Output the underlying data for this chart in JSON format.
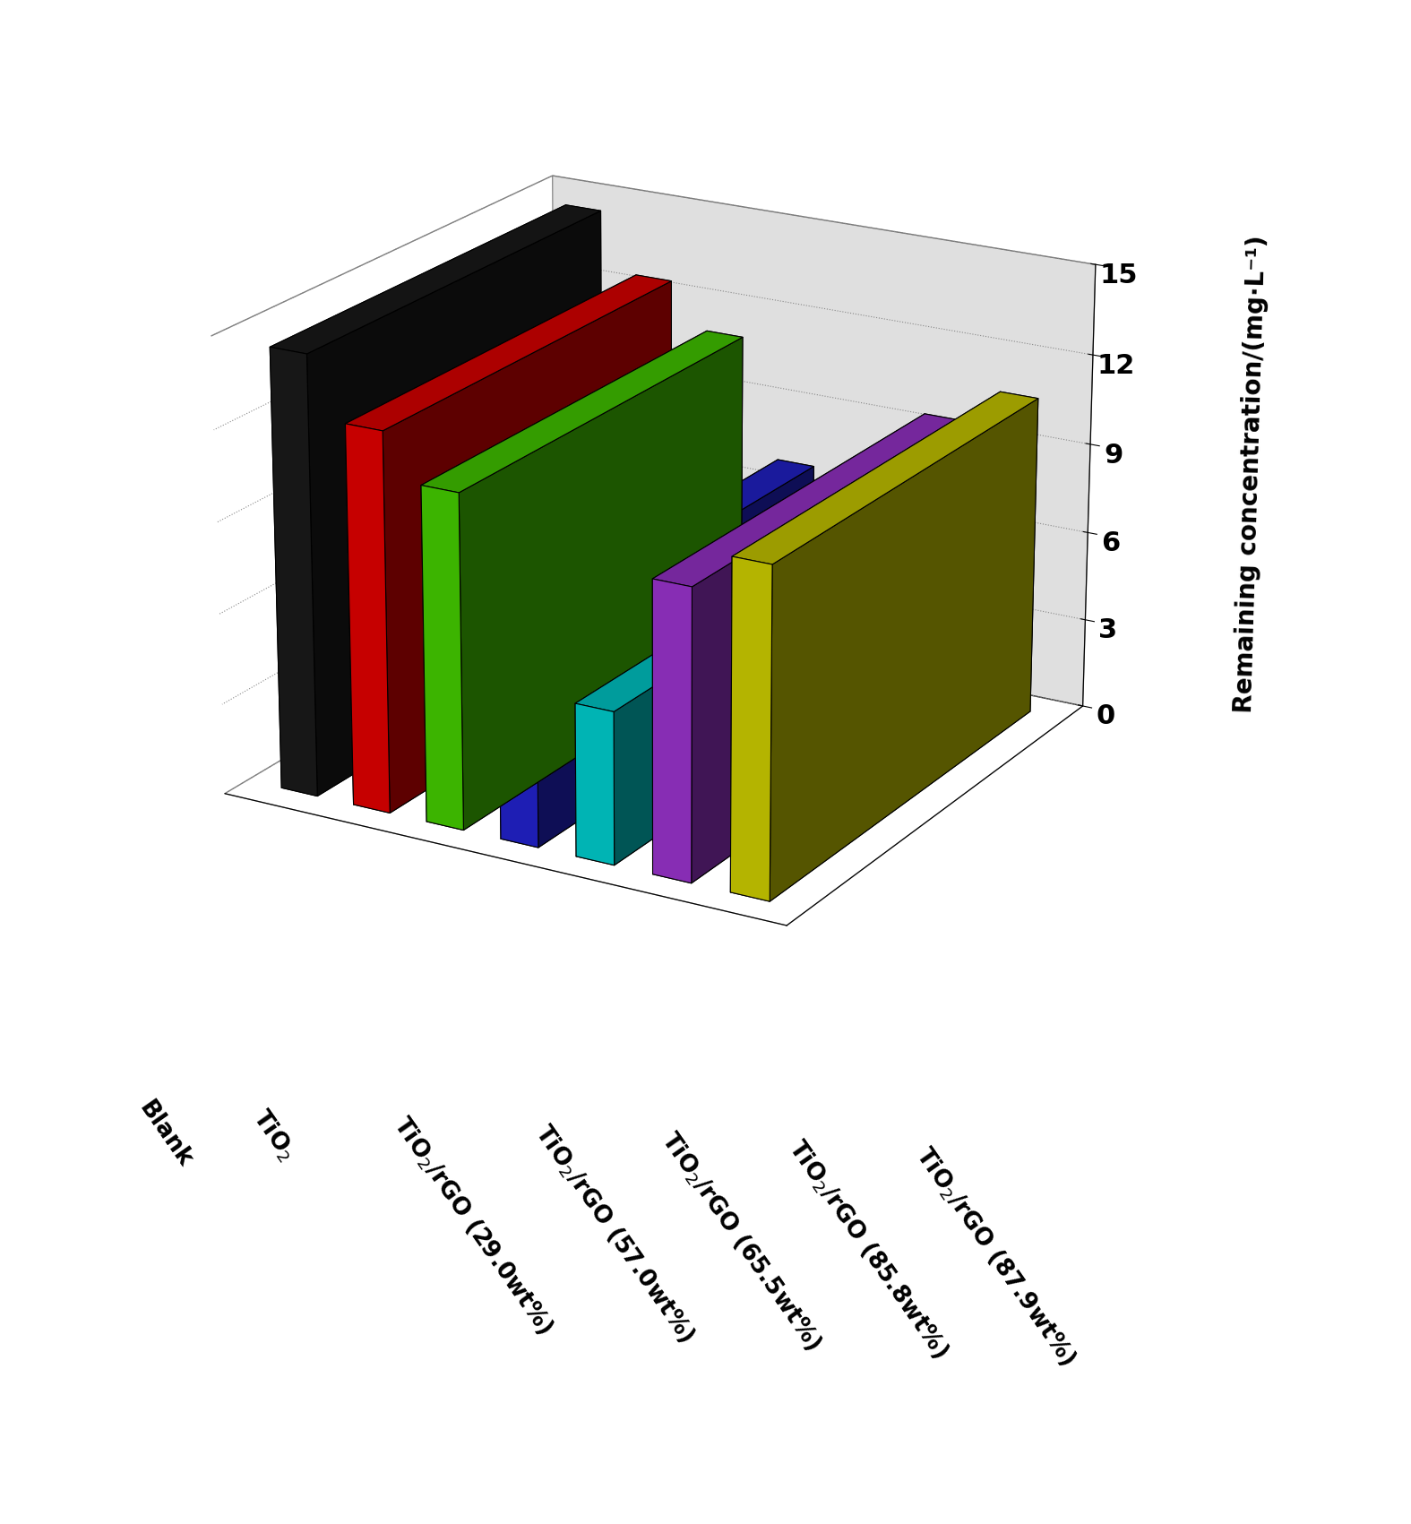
{
  "categories": [
    "Blank",
    "TiO$_2$",
    "TiO$_2$/rGO (29.0wt%)",
    "TiO$_2$/rGO (57.0wt%)",
    "TiO$_2$/rGO (65.5wt%)",
    "TiO$_2$/rGO (85.8wt%)",
    "TiO$_2$/rGO (87.9wt%)"
  ],
  "values": [
    14.5,
    12.5,
    11.0,
    7.0,
    5.0,
    9.5,
    10.7
  ],
  "colors": [
    "#1a1a1a",
    "#e00000",
    "#44cc00",
    "#2222cc",
    "#00cccc",
    "#9933cc",
    "#cccc00"
  ],
  "ylabel": "Remaining concentration/(mg·L⁻¹)",
  "ylim": [
    0,
    15
  ],
  "yticks": [
    0,
    3,
    6,
    9,
    12,
    15
  ],
  "bar_width": 0.5,
  "bar_depth": 0.4,
  "background_color": "#ffffff",
  "grid_color": "#888888",
  "wall_color": "#c0c0c0"
}
